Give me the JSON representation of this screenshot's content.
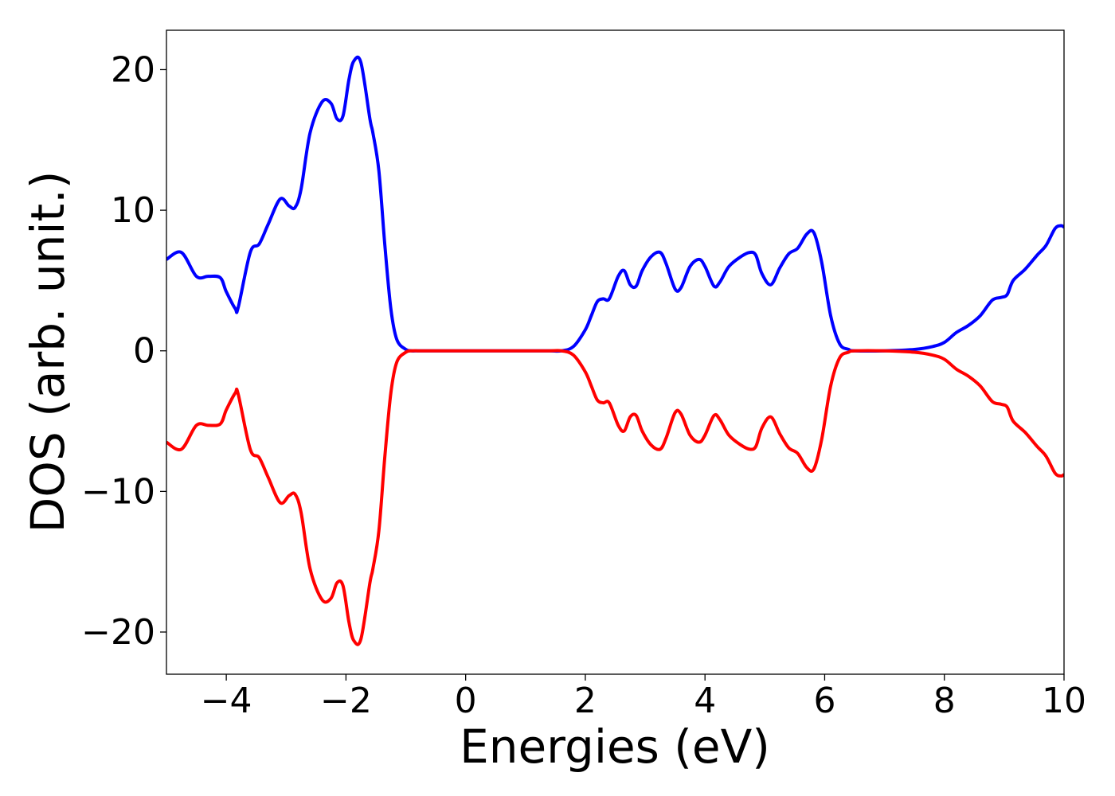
{
  "chart_data": {
    "type": "line",
    "title": "",
    "xlabel": "Energies (eV)",
    "ylabel": "DOS (arb. unit.)",
    "xlim": [
      -5,
      10
    ],
    "ylim": [
      -23,
      22.8
    ],
    "xticks": [
      -4,
      -2,
      0,
      2,
      4,
      6,
      8,
      10
    ],
    "xtick_labels": [
      "−4",
      "−2",
      "0",
      "2",
      "4",
      "6",
      "8",
      "10"
    ],
    "yticks": [
      -20,
      -10,
      0,
      10,
      20
    ],
    "ytick_labels": [
      "−20",
      "−10",
      "0",
      "10",
      "20"
    ],
    "grid": false,
    "legend": "none",
    "x": [
      -5.0,
      -4.75,
      -4.5,
      -4.3,
      -4.1,
      -4.0,
      -3.85,
      -3.8,
      -3.6,
      -3.45,
      -3.3,
      -3.1,
      -2.95,
      -2.85,
      -2.75,
      -2.6,
      -2.4,
      -2.25,
      -2.15,
      -2.05,
      -1.95,
      -1.87,
      -1.75,
      -1.6,
      -1.55,
      -1.45,
      -1.35,
      -1.25,
      -1.15,
      -1.0,
      -0.9,
      -0.8,
      -0.7,
      -0.6,
      -0.5,
      0.0,
      0.5,
      1.0,
      1.4,
      1.6,
      1.8,
      2.0,
      2.1,
      2.2,
      2.3,
      2.4,
      2.55,
      2.65,
      2.75,
      2.85,
      2.95,
      3.1,
      3.25,
      3.35,
      3.5,
      3.6,
      3.75,
      3.9,
      4.0,
      4.15,
      4.25,
      4.4,
      4.6,
      4.75,
      4.85,
      4.95,
      5.1,
      5.25,
      5.4,
      5.55,
      5.7,
      5.82,
      5.95,
      6.1,
      6.25,
      6.4,
      6.5,
      7.0,
      7.5,
      7.8,
      8.0,
      8.2,
      8.4,
      8.6,
      8.8,
      8.95,
      9.05,
      9.15,
      9.35,
      9.55,
      9.7,
      9.85,
      9.95,
      10.0
    ],
    "series": [
      {
        "color": "#0000ff",
        "values": [
          6.5,
          7.0,
          5.3,
          5.3,
          5.2,
          4.2,
          3.0,
          3.1,
          7.0,
          7.6,
          9.0,
          10.8,
          10.3,
          10.2,
          11.5,
          15.5,
          17.7,
          17.6,
          16.5,
          16.7,
          19.3,
          20.6,
          20.5,
          16.5,
          15.5,
          12.8,
          7.5,
          3.0,
          0.8,
          0.1,
          0.0,
          0.0,
          0.0,
          0.0,
          0.0,
          0.0,
          0.0,
          0.0,
          0.0,
          0.0,
          0.3,
          1.5,
          2.5,
          3.5,
          3.7,
          3.7,
          5.3,
          5.7,
          4.7,
          4.6,
          5.7,
          6.7,
          7.0,
          6.2,
          4.4,
          4.5,
          6.0,
          6.5,
          6.0,
          4.6,
          4.9,
          6.0,
          6.7,
          7.0,
          6.8,
          5.5,
          4.7,
          5.9,
          6.9,
          7.3,
          8.3,
          8.4,
          6.3,
          2.5,
          0.5,
          0.1,
          0.0,
          0.0,
          0.1,
          0.3,
          0.6,
          1.3,
          1.8,
          2.5,
          3.6,
          3.8,
          4.0,
          5.0,
          5.8,
          6.8,
          7.5,
          8.7,
          8.9,
          8.8
        ]
      },
      {
        "color": "#ff0000",
        "values": [
          -6.5,
          -7.0,
          -5.3,
          -5.3,
          -5.2,
          -4.2,
          -3.0,
          -3.1,
          -7.0,
          -7.6,
          -9.0,
          -10.8,
          -10.3,
          -10.2,
          -11.5,
          -15.5,
          -17.7,
          -17.6,
          -16.5,
          -16.7,
          -19.3,
          -20.6,
          -20.5,
          -16.5,
          -15.5,
          -12.8,
          -7.5,
          -3.0,
          -0.8,
          -0.1,
          0.0,
          0.0,
          0.0,
          0.0,
          0.0,
          0.0,
          0.0,
          0.0,
          0.0,
          0.0,
          -0.3,
          -1.5,
          -2.5,
          -3.5,
          -3.7,
          -3.7,
          -5.3,
          -5.7,
          -4.7,
          -4.6,
          -5.7,
          -6.7,
          -7.0,
          -6.2,
          -4.4,
          -4.5,
          -6.0,
          -6.5,
          -6.0,
          -4.6,
          -4.9,
          -6.0,
          -6.7,
          -7.0,
          -6.8,
          -5.5,
          -4.7,
          -5.9,
          -6.9,
          -7.3,
          -8.3,
          -8.4,
          -6.3,
          -2.5,
          -0.5,
          -0.1,
          0.0,
          0.0,
          -0.1,
          -0.3,
          -0.6,
          -1.3,
          -1.8,
          -2.5,
          -3.6,
          -3.8,
          -4.0,
          -5.0,
          -5.8,
          -6.8,
          -7.5,
          -8.7,
          -8.9,
          -8.8
        ]
      }
    ]
  }
}
